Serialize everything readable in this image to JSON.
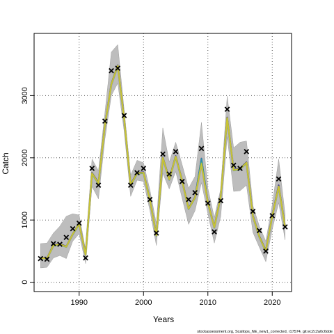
{
  "chart_data": {
    "type": "line",
    "title": "",
    "xlabel": "Years",
    "ylabel": "Catch",
    "xlim": [
      1983,
      2023
    ],
    "ylim": [
      -150,
      4000
    ],
    "grid": true,
    "xticks": [
      1990,
      2000,
      2010,
      2020
    ],
    "yticks": [
      0,
      1000,
      2000,
      3000
    ],
    "observed": {
      "marker": "x",
      "x": [
        1984,
        1985,
        1986,
        1987,
        1988,
        1989,
        1990,
        1991,
        1992,
        1993,
        1994,
        1995,
        1996,
        1997,
        1998,
        1999,
        2000,
        2001,
        2002,
        2003,
        2004,
        2005,
        2006,
        2007,
        2008,
        2009,
        2010,
        2011,
        2012,
        2013,
        2014,
        2015,
        2016,
        2017,
        2018,
        2019,
        2020,
        2021,
        2022
      ],
      "y": [
        380,
        370,
        620,
        610,
        720,
        860,
        950,
        390,
        1830,
        1560,
        2590,
        3400,
        3440,
        2680,
        1560,
        1760,
        1830,
        1330,
        790,
        2060,
        1740,
        2100,
        1620,
        1330,
        1440,
        2150,
        1270,
        810,
        1310,
        2780,
        1880,
        1830,
        2100,
        1140,
        830,
        500,
        1070,
        1660,
        890
      ]
    },
    "band": {
      "x": [
        1984,
        1985,
        1986,
        1987,
        1988,
        1989,
        1990,
        1991,
        1992,
        1993,
        1994,
        1995,
        1996,
        1997,
        1998,
        1999,
        2000,
        2001,
        2002,
        2003,
        2004,
        2005,
        2006,
        2007,
        2008,
        2009,
        2010,
        2011,
        2012,
        2013,
        2014,
        2015,
        2016,
        2017,
        2018,
        2019,
        2020,
        2021,
        2022
      ],
      "lower": [
        230,
        240,
        390,
        430,
        380,
        660,
        780,
        300,
        1540,
        1340,
        2300,
        3000,
        3200,
        2420,
        1380,
        1640,
        1620,
        1150,
        590,
        1750,
        1500,
        1780,
        1350,
        930,
        1150,
        1600,
        1100,
        630,
        1060,
        2340,
        1460,
        1470,
        1560,
        800,
        560,
        330,
        850,
        1280,
        680
      ],
      "upper": [
        620,
        630,
        790,
        900,
        1060,
        1100,
        1080,
        520,
        1980,
        1790,
        2720,
        3700,
        3820,
        2760,
        1720,
        1960,
        1920,
        1480,
        940,
        2480,
        1930,
        2250,
        1890,
        1510,
        1700,
        2570,
        1510,
        1040,
        1500,
        2990,
        2160,
        2250,
        2270,
        1230,
        900,
        660,
        1240,
        1980,
        1090
      ]
    },
    "series": [
      {
        "color": "#ab9fa8",
        "values": [
          390,
          380,
          590,
          610,
          570,
          770,
          940,
          440,
          1750,
          1590,
          2520,
          3180,
          3480,
          2620,
          1560,
          1750,
          1760,
          1320,
          750,
          2000,
          1650,
          2020,
          1630,
          1180,
          1360,
          1900,
          1280,
          880,
          1380,
          2640,
          1800,
          1820,
          1920,
          1060,
          730,
          500,
          1060,
          1540,
          880
        ]
      },
      {
        "color": "#3d2e7c",
        "values": [
          395,
          385,
          600,
          620,
          575,
          775,
          945,
          450,
          1760,
          1600,
          2530,
          3190,
          3490,
          2630,
          1570,
          1760,
          1770,
          1330,
          760,
          2010,
          1660,
          2030,
          1640,
          1190,
          1370,
          1990,
          1290,
          890,
          1390,
          2650,
          1810,
          1830,
          1930,
          1070,
          740,
          510,
          1070,
          1560,
          890
        ]
      },
      {
        "color": "#2f8fa8",
        "values": [
          388,
          378,
          585,
          605,
          568,
          765,
          935,
          438,
          1745,
          1585,
          2515,
          3175,
          3475,
          2615,
          1555,
          1745,
          1755,
          1315,
          745,
          1995,
          1645,
          2015,
          1625,
          1175,
          1355,
          1985,
          1275,
          875,
          1375,
          2635,
          1795,
          1815,
          1915,
          1055,
          725,
          495,
          1055,
          1535,
          875
        ]
      },
      {
        "color": "#4cb07a",
        "values": [
          392,
          382,
          592,
          612,
          572,
          772,
          942,
          442,
          1752,
          1592,
          2522,
          3182,
          3482,
          2622,
          1562,
          1752,
          1762,
          1322,
          752,
          2002,
          1652,
          2022,
          1632,
          1182,
          1362,
          1920,
          1282,
          882,
          1382,
          2642,
          1802,
          1822,
          1922,
          1062,
          732,
          502,
          1062,
          1542,
          882
        ]
      },
      {
        "color": "#9bbf35",
        "values": [
          390,
          380,
          590,
          610,
          570,
          770,
          940,
          440,
          1750,
          1590,
          2520,
          3180,
          3480,
          2620,
          1560,
          1750,
          1760,
          1320,
          750,
          2000,
          1650,
          2020,
          1630,
          1180,
          1360,
          1900,
          1280,
          880,
          1380,
          2640,
          1800,
          1820,
          1920,
          1060,
          730,
          500,
          1060,
          1540,
          880
        ]
      },
      {
        "color": "#c9c234",
        "values": [
          391,
          381,
          591,
          611,
          571,
          771,
          941,
          441,
          1751,
          1591,
          2521,
          3181,
          3481,
          2621,
          1561,
          1751,
          1761,
          1321,
          751,
          2001,
          1651,
          2021,
          1631,
          1181,
          1361,
          1905,
          1281,
          881,
          1381,
          2641,
          1801,
          1821,
          1921,
          1061,
          731,
          501,
          1061,
          1541,
          881
        ]
      }
    ],
    "footnote": "stockassessment.org, Scallops_NE_new1_corrected, r17574, git:ec2c2a0c6dde"
  }
}
